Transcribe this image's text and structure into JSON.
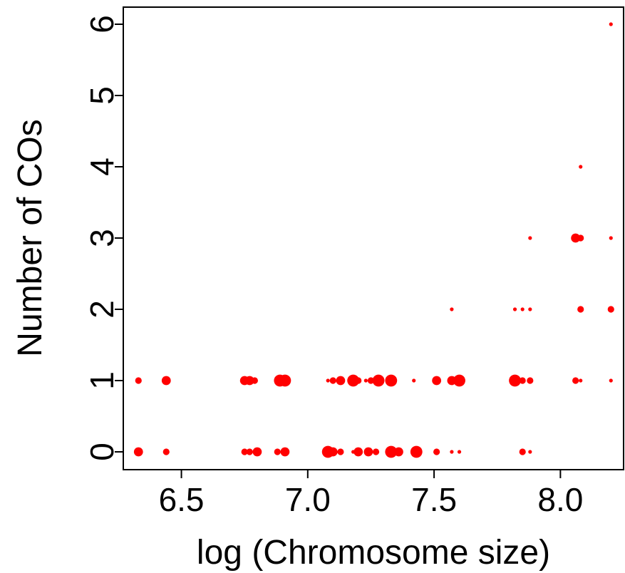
{
  "chart_data": {
    "type": "scatter",
    "title": "",
    "xlabel": "log (Chromosome size)",
    "ylabel": "Number of COs",
    "xlim": [
      6.27,
      8.25
    ],
    "ylim": [
      -0.25,
      6.24
    ],
    "x_ticks": [
      6.5,
      7.0,
      7.5,
      8.0
    ],
    "x_tick_labels": [
      "6.5",
      "7.0",
      "7.5",
      "8.0"
    ],
    "y_ticks": [
      0,
      1,
      2,
      3,
      4,
      5,
      6
    ],
    "y_tick_labels": [
      "0",
      "1",
      "2",
      "3",
      "4",
      "5",
      "6"
    ],
    "grid": false,
    "marker_color": "#ff0000",
    "point_size_encoding": "relative frequency",
    "series": [
      {
        "points": [
          {
            "x": 6.33,
            "y": 1,
            "size": 2
          },
          {
            "x": 6.44,
            "y": 1,
            "size": 3
          },
          {
            "x": 6.75,
            "y": 1,
            "size": 3
          },
          {
            "x": 6.77,
            "y": 1,
            "size": 3
          },
          {
            "x": 6.79,
            "y": 1,
            "size": 2
          },
          {
            "x": 6.89,
            "y": 1,
            "size": 4
          },
          {
            "x": 6.91,
            "y": 1,
            "size": 4
          },
          {
            "x": 7.08,
            "y": 1,
            "size": 1
          },
          {
            "x": 7.1,
            "y": 1,
            "size": 2
          },
          {
            "x": 7.13,
            "y": 1,
            "size": 3
          },
          {
            "x": 7.18,
            "y": 1,
            "size": 4
          },
          {
            "x": 7.2,
            "y": 1,
            "size": 2
          },
          {
            "x": 7.23,
            "y": 1,
            "size": 1
          },
          {
            "x": 7.25,
            "y": 1,
            "size": 2
          },
          {
            "x": 7.28,
            "y": 1,
            "size": 4
          },
          {
            "x": 7.33,
            "y": 1,
            "size": 4
          },
          {
            "x": 7.42,
            "y": 1,
            "size": 1
          },
          {
            "x": 7.51,
            "y": 1,
            "size": 3
          },
          {
            "x": 7.57,
            "y": 1,
            "size": 3
          },
          {
            "x": 7.6,
            "y": 1,
            "size": 4
          },
          {
            "x": 7.82,
            "y": 1,
            "size": 4
          },
          {
            "x": 7.85,
            "y": 1,
            "size": 2
          },
          {
            "x": 7.88,
            "y": 1,
            "size": 2
          },
          {
            "x": 8.06,
            "y": 1,
            "size": 2
          },
          {
            "x": 8.08,
            "y": 1,
            "size": 1
          },
          {
            "x": 8.2,
            "y": 1,
            "size": 1
          },
          {
            "x": 6.33,
            "y": 0,
            "size": 3
          },
          {
            "x": 6.44,
            "y": 0,
            "size": 2
          },
          {
            "x": 6.75,
            "y": 0,
            "size": 2
          },
          {
            "x": 6.77,
            "y": 0,
            "size": 2
          },
          {
            "x": 6.8,
            "y": 0,
            "size": 3
          },
          {
            "x": 6.88,
            "y": 0,
            "size": 2
          },
          {
            "x": 6.91,
            "y": 0,
            "size": 3
          },
          {
            "x": 7.08,
            "y": 0,
            "size": 4
          },
          {
            "x": 7.1,
            "y": 0,
            "size": 3
          },
          {
            "x": 7.13,
            "y": 0,
            "size": 2
          },
          {
            "x": 7.18,
            "y": 0,
            "size": 1
          },
          {
            "x": 7.2,
            "y": 0,
            "size": 3
          },
          {
            "x": 7.24,
            "y": 0,
            "size": 3
          },
          {
            "x": 7.27,
            "y": 0,
            "size": 2
          },
          {
            "x": 7.33,
            "y": 0,
            "size": 4
          },
          {
            "x": 7.36,
            "y": 0,
            "size": 3
          },
          {
            "x": 7.43,
            "y": 0,
            "size": 4
          },
          {
            "x": 7.51,
            "y": 0,
            "size": 2
          },
          {
            "x": 7.57,
            "y": 0,
            "size": 1
          },
          {
            "x": 7.6,
            "y": 0,
            "size": 1
          },
          {
            "x": 7.85,
            "y": 0,
            "size": 2
          },
          {
            "x": 7.88,
            "y": 0,
            "size": 1
          },
          {
            "x": 7.57,
            "y": 2,
            "size": 1
          },
          {
            "x": 7.82,
            "y": 2,
            "size": 1
          },
          {
            "x": 7.85,
            "y": 2,
            "size": 1
          },
          {
            "x": 7.88,
            "y": 2,
            "size": 1
          },
          {
            "x": 8.08,
            "y": 2,
            "size": 2
          },
          {
            "x": 8.2,
            "y": 2,
            "size": 2
          },
          {
            "x": 7.88,
            "y": 3,
            "size": 1
          },
          {
            "x": 8.06,
            "y": 3,
            "size": 3
          },
          {
            "x": 8.08,
            "y": 3,
            "size": 2
          },
          {
            "x": 8.2,
            "y": 3,
            "size": 1
          },
          {
            "x": 8.08,
            "y": 4,
            "size": 1
          },
          {
            "x": 8.2,
            "y": 6,
            "size": 1
          }
        ]
      }
    ]
  }
}
